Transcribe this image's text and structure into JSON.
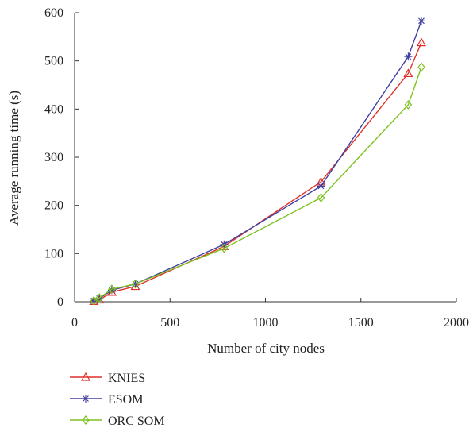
{
  "chart_data": {
    "type": "line",
    "xlabel": "Number of city nodes",
    "ylabel": "Average running time (s)",
    "xlim": [
      0,
      2000
    ],
    "ylim": [
      0,
      600
    ],
    "xticks": [
      0,
      500,
      1000,
      1500,
      2000
    ],
    "yticks": [
      0,
      100,
      200,
      300,
      400,
      500,
      600
    ],
    "grid": false,
    "legend_position": "bottom-left",
    "series": [
      {
        "name": "KNIES",
        "color": "#e0322a",
        "marker": "triangle",
        "points": [
          [
            101,
            1
          ],
          [
            130,
            4
          ],
          [
            195,
            20
          ],
          [
            318,
            32
          ],
          [
            783,
            115
          ],
          [
            1291,
            249
          ],
          [
            1748,
            474
          ],
          [
            1817,
            538
          ]
        ]
      },
      {
        "name": "ESOM",
        "color": "#4040a0",
        "marker": "star",
        "points": [
          [
            101,
            2
          ],
          [
            130,
            7
          ],
          [
            195,
            24
          ],
          [
            318,
            37
          ],
          [
            783,
            119
          ],
          [
            1291,
            240
          ],
          [
            1748,
            509
          ],
          [
            1817,
            583
          ]
        ]
      },
      {
        "name": "ORC SOM",
        "color": "#7cc21e",
        "marker": "diamond",
        "points": [
          [
            101,
            2
          ],
          [
            130,
            8
          ],
          [
            195,
            26
          ],
          [
            318,
            37
          ],
          [
            783,
            111
          ],
          [
            1291,
            216
          ],
          [
            1748,
            409
          ],
          [
            1817,
            487
          ]
        ]
      }
    ]
  }
}
